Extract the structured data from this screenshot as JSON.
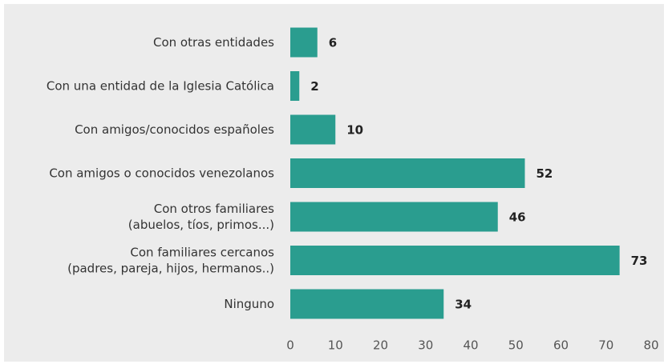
{
  "chart_data": {
    "type": "barh",
    "categories": [
      "Con otras entidades",
      "Con una entidad de la Iglesia Católica",
      "Con amigos/conocidos españoles",
      "Con amigos o conocidos venezolanos",
      "Con otros familiares\n(abuelos, tíos, primos...)",
      "Con familiares cercanos\n(padres, pareja, hijos, hermanos..)",
      "Ninguno"
    ],
    "values": [
      6,
      2,
      10,
      52,
      46,
      73,
      34
    ],
    "color": "#2a9d8f",
    "xlim": [
      0,
      80
    ],
    "xticks": [
      0,
      10,
      20,
      30,
      40,
      50,
      60,
      70,
      80
    ],
    "grid": false
  }
}
